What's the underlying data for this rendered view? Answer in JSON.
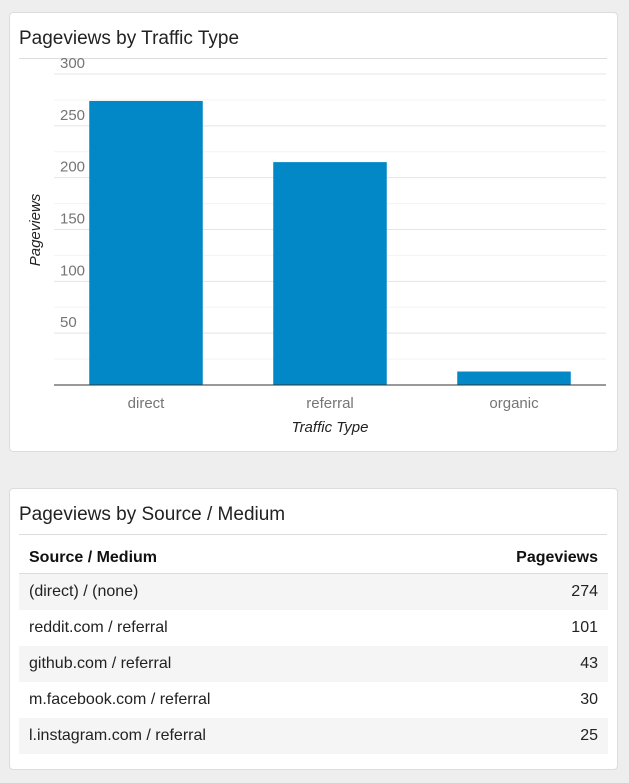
{
  "chart_card": {
    "title": "Pageviews by Traffic Type"
  },
  "chart_data": {
    "type": "bar",
    "title": "Pageviews by Traffic Type",
    "categories": [
      "direct",
      "referral",
      "organic"
    ],
    "values": [
      274,
      215,
      13
    ],
    "xlabel": "Traffic Type",
    "ylabel": "Pageviews",
    "ylim": [
      0,
      300
    ],
    "yticks": [
      50,
      100,
      150,
      200,
      250,
      300
    ],
    "minor_gridlines": true,
    "legend": "none",
    "bar_color": "#0288c7"
  },
  "table_card": {
    "title": "Pageviews by Source / Medium",
    "columns": [
      "Source / Medium",
      "Pageviews"
    ],
    "rows": [
      [
        "(direct) / (none)",
        "274"
      ],
      [
        "reddit.com / referral",
        "101"
      ],
      [
        "github.com / referral",
        "43"
      ],
      [
        "m.facebook.com / referral",
        "30"
      ],
      [
        "l.instagram.com / referral",
        "25"
      ]
    ]
  }
}
